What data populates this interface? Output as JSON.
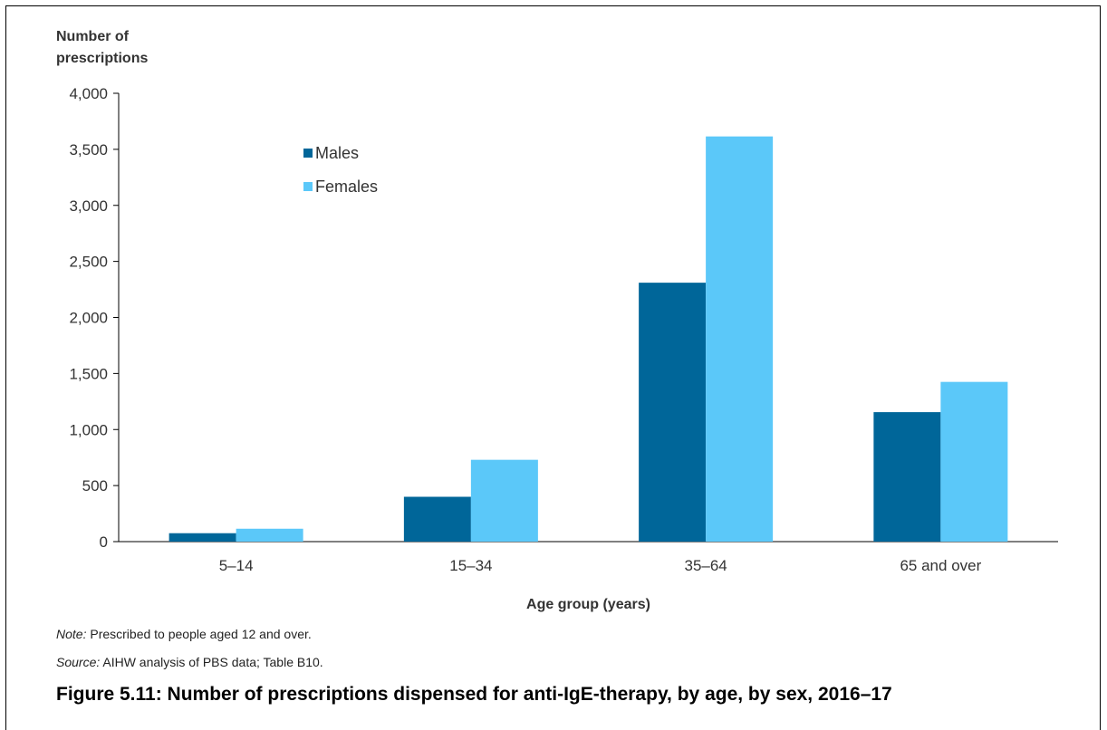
{
  "chart_data": {
    "type": "bar",
    "title": "",
    "ylabel": "Number of prescriptions",
    "xlabel": "Age group (years)",
    "categories": [
      "5–14",
      "15–34",
      "35–64",
      "65 and over"
    ],
    "series": [
      {
        "name": "Males",
        "color": "#006699",
        "values": [
          75,
          400,
          2310,
          1155
        ]
      },
      {
        "name": "Females",
        "color": "#5BC8F9",
        "values": [
          115,
          730,
          3615,
          1425
        ]
      }
    ],
    "ylim": [
      0,
      4000
    ],
    "yticks": [
      0,
      500,
      1000,
      1500,
      2000,
      2500,
      3000,
      3500,
      4000
    ],
    "ytick_labels": [
      "0",
      "500",
      "1,000",
      "1,500",
      "2,000",
      "2,500",
      "3,000",
      "3,500",
      "4,000"
    ],
    "grid": false,
    "legend": "upper-left-inside"
  },
  "note": {
    "label": "Note:",
    "text": " Prescribed to people aged 12 and over."
  },
  "source": {
    "label": "Source:",
    "text": " AIHW analysis of PBS data; Table B10."
  },
  "figure_title": "Figure 5.11: Number of prescriptions dispensed for anti-IgE-therapy, by age, by sex, 2016–17"
}
